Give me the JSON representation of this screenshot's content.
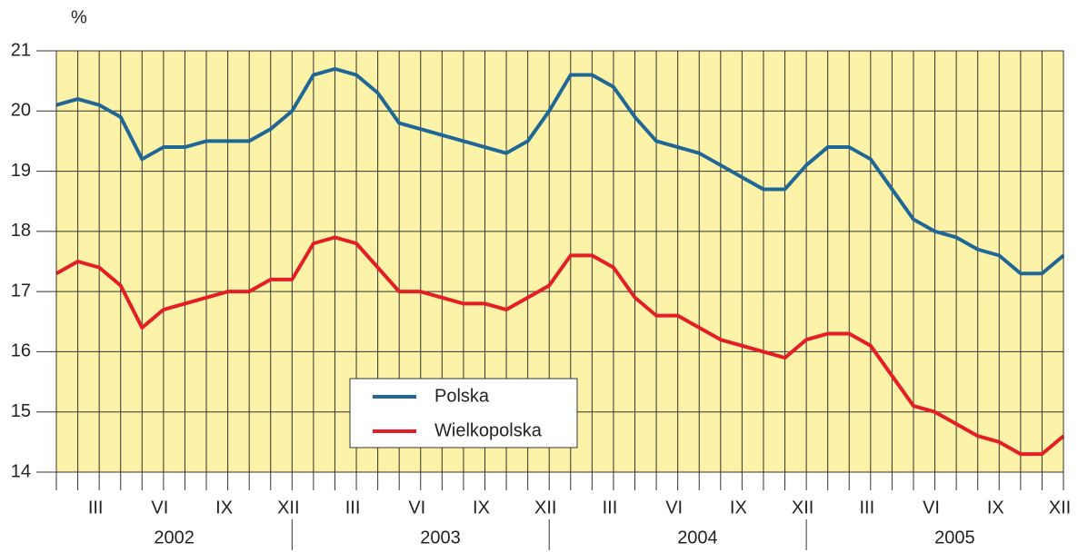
{
  "chart_data": {
    "type": "line",
    "y_unit": "%",
    "categories": [
      null,
      null,
      "III",
      null,
      null,
      "VI",
      null,
      null,
      "IX",
      null,
      null,
      "XII",
      null,
      null,
      "III",
      null,
      null,
      "VI",
      null,
      null,
      "IX",
      null,
      null,
      "XII",
      null,
      null,
      "III",
      null,
      null,
      "VI",
      null,
      null,
      "IX",
      null,
      null,
      "XII",
      null,
      null,
      "III",
      null,
      null,
      "VI",
      null,
      null,
      "IX",
      null,
      null,
      "XII"
    ],
    "years": [
      "2002",
      "2003",
      "2004",
      "2005"
    ],
    "series": [
      {
        "name": "Polska",
        "color": "#1f6796",
        "values": [
          20.1,
          20.2,
          20.1,
          19.9,
          19.2,
          19.4,
          19.4,
          19.5,
          19.5,
          19.5,
          19.7,
          20.0,
          20.6,
          20.7,
          20.6,
          20.3,
          19.8,
          19.7,
          19.6,
          19.5,
          19.4,
          19.3,
          19.5,
          20.0,
          20.6,
          20.6,
          20.4,
          19.9,
          19.5,
          19.4,
          19.3,
          19.1,
          18.9,
          18.7,
          18.7,
          19.1,
          19.4,
          19.4,
          19.2,
          18.7,
          18.2,
          18.0,
          17.9,
          17.7,
          17.6,
          17.3,
          17.3,
          17.6
        ]
      },
      {
        "name": "Wielkopolska",
        "color": "#e31e26",
        "values": [
          17.3,
          17.5,
          17.4,
          17.1,
          16.4,
          16.7,
          16.8,
          16.9,
          17.0,
          17.0,
          17.2,
          17.2,
          17.8,
          17.9,
          17.8,
          17.4,
          17.0,
          17.0,
          16.9,
          16.8,
          16.8,
          16.7,
          16.9,
          17.1,
          17.6,
          17.6,
          17.4,
          16.9,
          16.6,
          16.6,
          16.4,
          16.2,
          16.1,
          16.0,
          15.9,
          16.2,
          16.3,
          16.3,
          16.1,
          15.6,
          15.1,
          15.0,
          14.8,
          14.6,
          14.5,
          14.3,
          14.3,
          14.6
        ]
      }
    ],
    "ylim": [
      14,
      21
    ],
    "yticks": [
      14,
      15,
      16,
      17,
      18,
      19,
      20,
      21
    ],
    "grid": true,
    "background": "#fcf2a8"
  }
}
